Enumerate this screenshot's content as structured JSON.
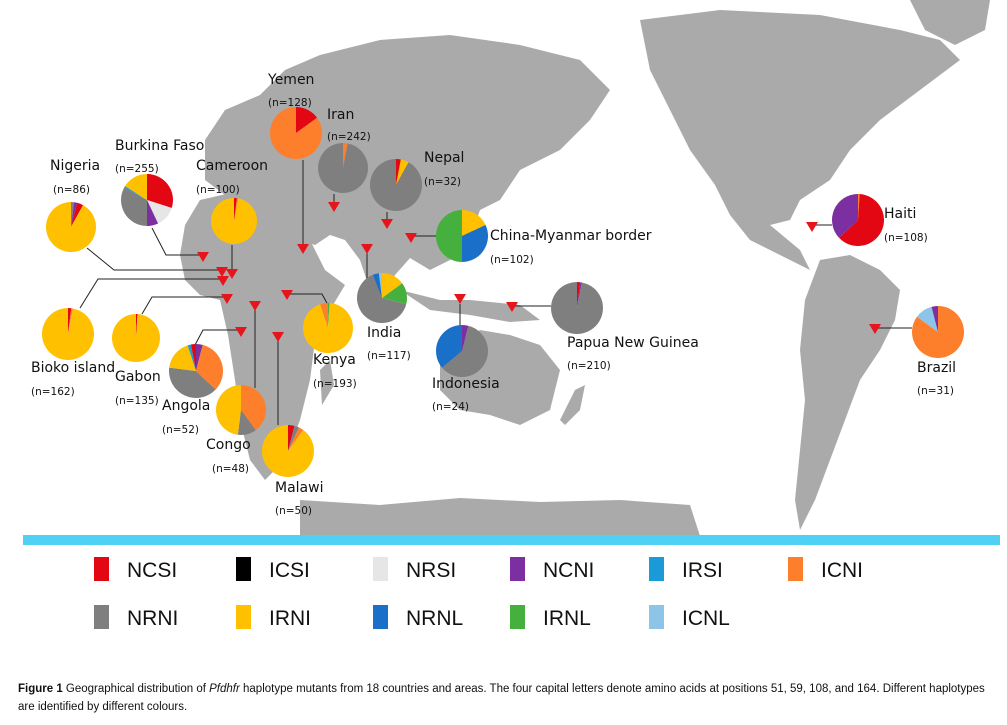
{
  "colors": {
    "NCSI": "#e30613",
    "ICSI": "#000000",
    "NRSI": "#e6e6e6",
    "NCNI": "#7b2fa0",
    "IRSI": "#1a9ad6",
    "ICNI": "#fd7e2b",
    "NRNI": "#7f7f7f",
    "IRNI": "#ffc000",
    "NRNL": "#1a6fc9",
    "IRNL": "#45b03e",
    "ICNL": "#8ec4e8",
    "land": "#aaaaaa",
    "ocean_bar": "#4fd0f5",
    "marker": "#e8141c"
  },
  "legend": [
    {
      "code": "NCSI"
    },
    {
      "code": "ICSI"
    },
    {
      "code": "NRSI"
    },
    {
      "code": "NCNI"
    },
    {
      "code": "IRSI"
    },
    {
      "code": "ICNI"
    },
    {
      "code": "NRNI"
    },
    {
      "code": "IRNI"
    },
    {
      "code": "NRNL"
    },
    {
      "code": "IRNL"
    },
    {
      "code": "ICNL"
    }
  ],
  "chart_data": {
    "type": "pie",
    "title": "Geographical distribution of Pfdhfr haplotype mutants",
    "unit": "percent of isolates (estimated from pie slices)",
    "pies": [
      {
        "name": "Yemen",
        "n": "(n=128)",
        "slices": {
          "NCSI": 15,
          "ICNI": 85
        }
      },
      {
        "name": "Iran",
        "n": "(n=242)",
        "slices": {
          "ICNI": 3,
          "NRNI": 97
        }
      },
      {
        "name": "Nepal",
        "n": "(n=32)",
        "slices": {
          "NCSI": 3,
          "IRNI": 5,
          "NRNI": 92
        }
      },
      {
        "name": "Burkina Faso",
        "n": "(n=255)",
        "slices": {
          "NCSI": 30,
          "NRSI": 13,
          "NCNI": 7,
          "NRNI": 33,
          "IRSI": 1,
          "IRNI": 16
        }
      },
      {
        "name": "Nigeria",
        "n": "(n=86)",
        "slices": {
          "NRNI": 2,
          "NCNI": 2,
          "NCSI": 4,
          "IRNI": 92
        }
      },
      {
        "name": "Cameroon",
        "n": "(n=100)",
        "slices": {
          "NCSI": 2,
          "ICNI": 1,
          "IRNI": 97
        }
      },
      {
        "name": "China-Myanmar border",
        "n": "(n=102)",
        "slices": {
          "IRNI": 18,
          "NRNL": 32,
          "IRNL": 50
        }
      },
      {
        "name": "India",
        "n": "(n=117)",
        "slices": {
          "IRNI": 15,
          "IRNL": 14,
          "NRNI": 65,
          "NRNL": 4,
          "ICNL": 2
        }
      },
      {
        "name": "Indonesia",
        "n": "(n=24)",
        "slices": {
          "NCNI": 4,
          "NRNI": 60,
          "NRNL": 36
        }
      },
      {
        "name": "Papua New Guinea",
        "n": "(n=210)",
        "slices": {
          "NCSI": 2,
          "NCNI": 1,
          "NRNI": 97
        }
      },
      {
        "name": "Haiti",
        "n": "(n=108)",
        "slices": {
          "ICNI": 1,
          "NCSI": 62,
          "NCNI": 37
        }
      },
      {
        "name": "Brazil",
        "n": "(n=31)",
        "slices": {
          "ICNI": 85,
          "ICNL": 11,
          "NCNI": 4
        }
      },
      {
        "name": "Bioko island",
        "n": "(n=162)",
        "slices": {
          "NCSI": 2,
          "ICNI": 1,
          "IRNI": 97
        }
      },
      {
        "name": "Gabon",
        "n": "(n=135)",
        "slices": {
          "NCSI": 1,
          "IRNI": 99
        }
      },
      {
        "name": "Angola",
        "n": "(n=52)",
        "slices": {
          "NCNI": 4,
          "ICNI": 33,
          "NRNI": 40,
          "IRNI": 18,
          "IRSI": 2,
          "NCSI": 3
        }
      },
      {
        "name": "Congo",
        "n": "(n=48)",
        "slices": {
          "ICNI": 40,
          "NRNI": 12,
          "IRNI": 48
        }
      },
      {
        "name": "Kenya",
        "n": "(n=193)",
        "slices": {
          "IRNL": 1,
          "IRNI": 94,
          "ICNI": 5
        }
      },
      {
        "name": "Malawi",
        "n": "(n=50)",
        "slices": {
          "NCSI": 4,
          "NRNI": 3,
          "ICNI": 3,
          "IRNI": 90
        }
      }
    ]
  },
  "caption": {
    "label": "Figure 1",
    "text_before": " Geographical distribution of ",
    "gene": "Pfdhfr",
    "text_after": " haplotype mutants from 18 countries and areas. The four capital letters denote amino acids at positions 51, 59, 108, and 164. Different haplotypes are identified by different colours."
  }
}
